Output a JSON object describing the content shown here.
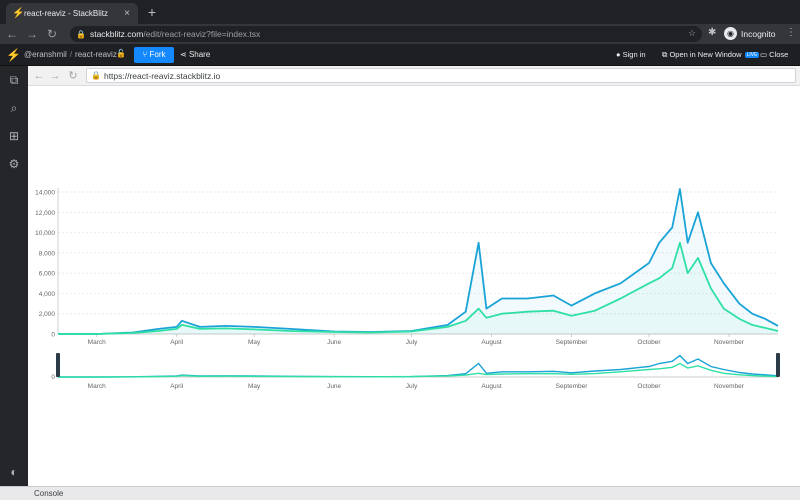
{
  "browser": {
    "tab_title": "react-reaviz - StackBlitz",
    "tab_close": "×",
    "new_tab": "+",
    "url_host": "stackblitz.com",
    "url_path": "/edit/react-reaviz?file=index.tsx",
    "profile_label": "Incognito"
  },
  "stackblitz": {
    "user": "@eranshmil",
    "separator": "/",
    "project": "react-reaviz",
    "fork_label": "Fork",
    "share_label": "Share",
    "sign_in_label": "Sign in",
    "open_window_label": "Open in New Window",
    "live_badge": "LIVE",
    "close_label": "Close",
    "accent_color": "#1389fd"
  },
  "preview": {
    "url": "https://react-reaviz.stackblitz.io"
  },
  "console": {
    "label": "Console"
  },
  "chart_data": {
    "type": "area",
    "title": "",
    "xlabel": "",
    "ylabel": "",
    "ylim": [
      0,
      14000
    ],
    "y_ticks": [
      "0",
      "2,000",
      "4,000",
      "6,000",
      "8,000",
      "10,000",
      "12,000",
      "14,000"
    ],
    "x_ticks": [
      "March",
      "April",
      "May",
      "June",
      "July",
      "August",
      "September",
      "October",
      "November"
    ],
    "grid": true,
    "brush": {
      "y_ticks": [
        "0"
      ],
      "x_ticks": [
        "March",
        "April",
        "May",
        "June",
        "July",
        "August",
        "September",
        "October",
        "November"
      ]
    },
    "series": [
      {
        "color": "#1aa3d6",
        "x": [
          "Feb 15",
          "Mar 1",
          "Mar 15",
          "Mar 25",
          "Apr 1",
          "Apr 3",
          "Apr 10",
          "Apr 20",
          "May 1",
          "May 15",
          "Jun 1",
          "Jun 15",
          "Jul 1",
          "Jul 15",
          "Jul 22",
          "Jul 27",
          "Jul 30",
          "Aug 5",
          "Aug 15",
          "Aug 25",
          "Sep 1",
          "Sep 10",
          "Sep 20",
          "Oct 1",
          "Oct 5",
          "Oct 10",
          "Oct 13",
          "Oct 16",
          "Oct 20",
          "Oct 25",
          "Oct 30",
          "Nov 5",
          "Nov 10",
          "Nov 15",
          "Nov 20"
        ],
        "values": [
          0,
          0,
          150,
          500,
          700,
          1300,
          700,
          800,
          700,
          500,
          250,
          200,
          300,
          900,
          2200,
          9000,
          2500,
          3500,
          3500,
          3800,
          2800,
          4000,
          5000,
          7000,
          9000,
          10500,
          14300,
          9000,
          12000,
          7000,
          5000,
          3000,
          2000,
          1500,
          800
        ]
      },
      {
        "color": "#2fe0a4",
        "x": [
          "Feb 15",
          "Mar 1",
          "Mar 15",
          "Mar 25",
          "Apr 1",
          "Apr 3",
          "Apr 10",
          "Apr 20",
          "May 1",
          "May 15",
          "Jun 1",
          "Jun 15",
          "Jul 1",
          "Jul 15",
          "Jul 22",
          "Jul 27",
          "Jul 30",
          "Aug 5",
          "Aug 15",
          "Aug 25",
          "Sep 1",
          "Sep 10",
          "Sep 20",
          "Oct 1",
          "Oct 5",
          "Oct 10",
          "Oct 13",
          "Oct 16",
          "Oct 20",
          "Oct 25",
          "Oct 30",
          "Nov 5",
          "Nov 10",
          "Nov 15",
          "Nov 20"
        ],
        "values": [
          0,
          0,
          100,
          300,
          500,
          900,
          500,
          550,
          450,
          300,
          200,
          150,
          250,
          700,
          1300,
          2500,
          1600,
          2000,
          2200,
          2300,
          1800,
          2300,
          3500,
          5000,
          5500,
          6500,
          9000,
          6000,
          7500,
          4500,
          2500,
          1500,
          900,
          600,
          300
        ]
      }
    ]
  }
}
